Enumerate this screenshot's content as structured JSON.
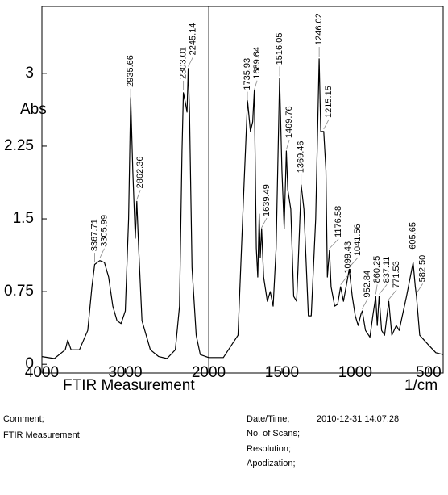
{
  "chart_data": {
    "type": "line",
    "ylabel": "Abs",
    "xlabel": "FTIR Measurement",
    "xunit": "1/cm",
    "color": "#000000",
    "xlim": [
      4000,
      400
    ],
    "ylim": [
      -0.09,
      3.69
    ],
    "xticks": [
      4000,
      3000,
      2000,
      1500,
      1000,
      500
    ],
    "yticks": [
      0,
      0.75,
      1.5,
      2.25,
      3
    ],
    "x": [
      4000,
      3850,
      3720,
      3690,
      3650,
      3550,
      3450,
      3400,
      3367,
      3305,
      3250,
      3200,
      3150,
      3100,
      3050,
      3000,
      2960,
      2935,
      2910,
      2880,
      2862,
      2840,
      2800,
      2700,
      2600,
      2500,
      2400,
      2350,
      2320,
      2303,
      2280,
      2260,
      2245,
      2230,
      2200,
      2150,
      2100,
      2000,
      1900,
      1800,
      1760,
      1735,
      1715,
      1700,
      1689,
      1675,
      1665,
      1655,
      1648,
      1639,
      1625,
      1600,
      1580,
      1560,
      1540,
      1516,
      1500,
      1485,
      1470,
      1460,
      1440,
      1420,
      1400,
      1390,
      1369,
      1350,
      1320,
      1300,
      1270,
      1246,
      1235,
      1215,
      1200,
      1190,
      1176,
      1165,
      1140,
      1120,
      1100,
      1080,
      1041,
      1020,
      1000,
      980,
      960,
      952,
      930,
      900,
      880,
      860,
      850,
      837,
      820,
      800,
      771,
      750,
      720,
      700,
      650,
      605,
      590,
      582,
      560,
      500,
      450,
      400
    ],
    "values": [
      0.08,
      0.06,
      0.15,
      0.25,
      0.15,
      0.15,
      0.35,
      0.8,
      1.03,
      1.07,
      1.05,
      0.9,
      0.6,
      0.45,
      0.42,
      0.55,
      1.5,
      2.75,
      2.0,
      1.3,
      1.68,
      1.2,
      0.45,
      0.15,
      0.08,
      0.06,
      0.15,
      0.6,
      2.2,
      2.8,
      2.7,
      2.6,
      3.05,
      2.6,
      1.0,
      0.3,
      0.1,
      0.07,
      0.07,
      0.3,
      1.8,
      2.72,
      2.4,
      2.5,
      2.82,
      1.2,
      0.9,
      1.55,
      1.1,
      1.4,
      0.9,
      0.65,
      0.75,
      0.6,
      1.2,
      2.95,
      2.0,
      1.4,
      2.2,
      1.8,
      1.6,
      0.7,
      0.65,
      1.0,
      1.85,
      1.6,
      0.5,
      0.5,
      1.5,
      3.15,
      2.4,
      2.4,
      2.0,
      0.9,
      1.18,
      0.8,
      0.6,
      0.62,
      0.8,
      0.65,
      0.98,
      0.7,
      0.5,
      0.4,
      0.52,
      0.55,
      0.35,
      0.28,
      0.5,
      0.7,
      0.4,
      0.7,
      0.35,
      0.3,
      0.65,
      0.3,
      0.4,
      0.35,
      0.7,
      1.05,
      0.8,
      0.7,
      0.3,
      0.2,
      0.12,
      0.1
    ],
    "peaks": [
      {
        "value": 3367.71,
        "label": "3367.71"
      },
      {
        "value": 3305.99,
        "label": "3305.99"
      },
      {
        "value": 2935.66,
        "label": "2935.66"
      },
      {
        "value": 2862.36,
        "label": "2862.36"
      },
      {
        "value": 2303.01,
        "label": "2303.01"
      },
      {
        "value": 2245.14,
        "label": "2245.14"
      },
      {
        "value": 1735.93,
        "label": "1735.93"
      },
      {
        "value": 1689.64,
        "label": "1689.64"
      },
      {
        "value": 1639.49,
        "label": "1639.49"
      },
      {
        "value": 1516.05,
        "label": "1516.05"
      },
      {
        "value": 1469.76,
        "label": "1469.76"
      },
      {
        "value": 1369.46,
        "label": "1369.46"
      },
      {
        "value": 1246.02,
        "label": "1246.02"
      },
      {
        "value": 1215.15,
        "label": "1215.15"
      },
      {
        "value": 1176.58,
        "label": "1176.58"
      },
      {
        "value": 1099.43,
        "label": "1099.43"
      },
      {
        "value": 1041.56,
        "label": "1041.56"
      },
      {
        "value": 952.84,
        "label": "952.84"
      },
      {
        "value": 860.25,
        "label": "860.25"
      },
      {
        "value": 837.11,
        "label": "837.11"
      },
      {
        "value": 771.53,
        "label": "771.53"
      },
      {
        "value": 605.65,
        "label": "605.65"
      },
      {
        "value": 582.5,
        "label": "582.50"
      }
    ]
  },
  "footer": {
    "comment_label": "Comment;",
    "comment": "FTIR Measurement",
    "datetime_label": "Date/Time;",
    "datetime": "2010-12-31 14:07:28",
    "scans_label": "No. of Scans;",
    "resolution_label": "Resolution;",
    "apodization_label": "Apodization;"
  }
}
